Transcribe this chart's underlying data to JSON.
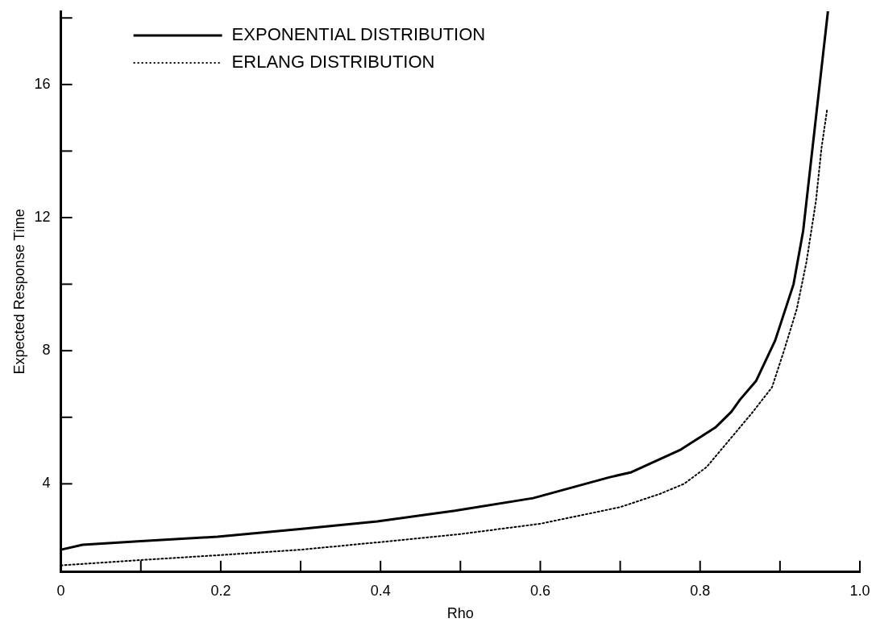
{
  "chart_data": {
    "type": "line",
    "xlabel": "Rho",
    "ylabel": "Expected Response Time",
    "xlim": [
      0,
      1.0
    ],
    "ylim": [
      1.35,
      18.2
    ],
    "xticks": [
      0,
      {
        "value": 0.1,
        "label": null
      },
      0.2,
      {
        "value": 0.3,
        "label": null
      },
      0.4,
      {
        "value": 0.5,
        "label": null
      },
      0.6,
      {
        "value": 0.7,
        "label": null
      },
      0.8,
      {
        "value": 0.9,
        "label": null
      },
      {
        "value": 1.0,
        "label": "1.0"
      }
    ],
    "yticks": [
      4,
      {
        "value": 6,
        "label": null
      },
      8,
      {
        "value": 10,
        "label": null
      },
      12,
      {
        "value": 14,
        "label": null
      },
      16,
      {
        "value": 18,
        "label": null
      }
    ],
    "grid": false,
    "legend": "top left",
    "marker": "none",
    "series": [
      {
        "name": "EXPONENTIAL DISTRIBUTION",
        "color": "#000000",
        "line_style": "solid",
        "x": [
          0,
          0.027,
          0.1,
          0.196,
          0.299,
          0.396,
          0.493,
          0.591,
          0.687,
          0.714,
          0.776,
          0.819,
          0.839,
          0.85,
          0.87,
          0.894,
          0.917,
          0.929,
          0.96
        ],
        "values": [
          2.02,
          2.17,
          2.28,
          2.41,
          2.64,
          2.87,
          3.19,
          3.57,
          4.2,
          4.35,
          5.03,
          5.69,
          6.16,
          6.53,
          7.09,
          8.31,
          10.0,
          11.6,
          18.2
        ]
      },
      {
        "name": "ERLANG DISTRIBUTION",
        "color": "#000000",
        "line_style": "dotted",
        "x": [
          0,
          0.1,
          0.2,
          0.3,
          0.4,
          0.5,
          0.6,
          0.7,
          0.75,
          0.78,
          0.808,
          0.843,
          0.866,
          0.89,
          0.905,
          0.921,
          0.933,
          0.945,
          0.952,
          0.959
        ],
        "values": [
          1.55,
          1.71,
          1.86,
          2.02,
          2.25,
          2.49,
          2.8,
          3.3,
          3.7,
          4.0,
          4.5,
          5.5,
          6.16,
          6.9,
          8.0,
          9.25,
          10.65,
          12.5,
          14.1,
          15.25
        ]
      }
    ]
  }
}
